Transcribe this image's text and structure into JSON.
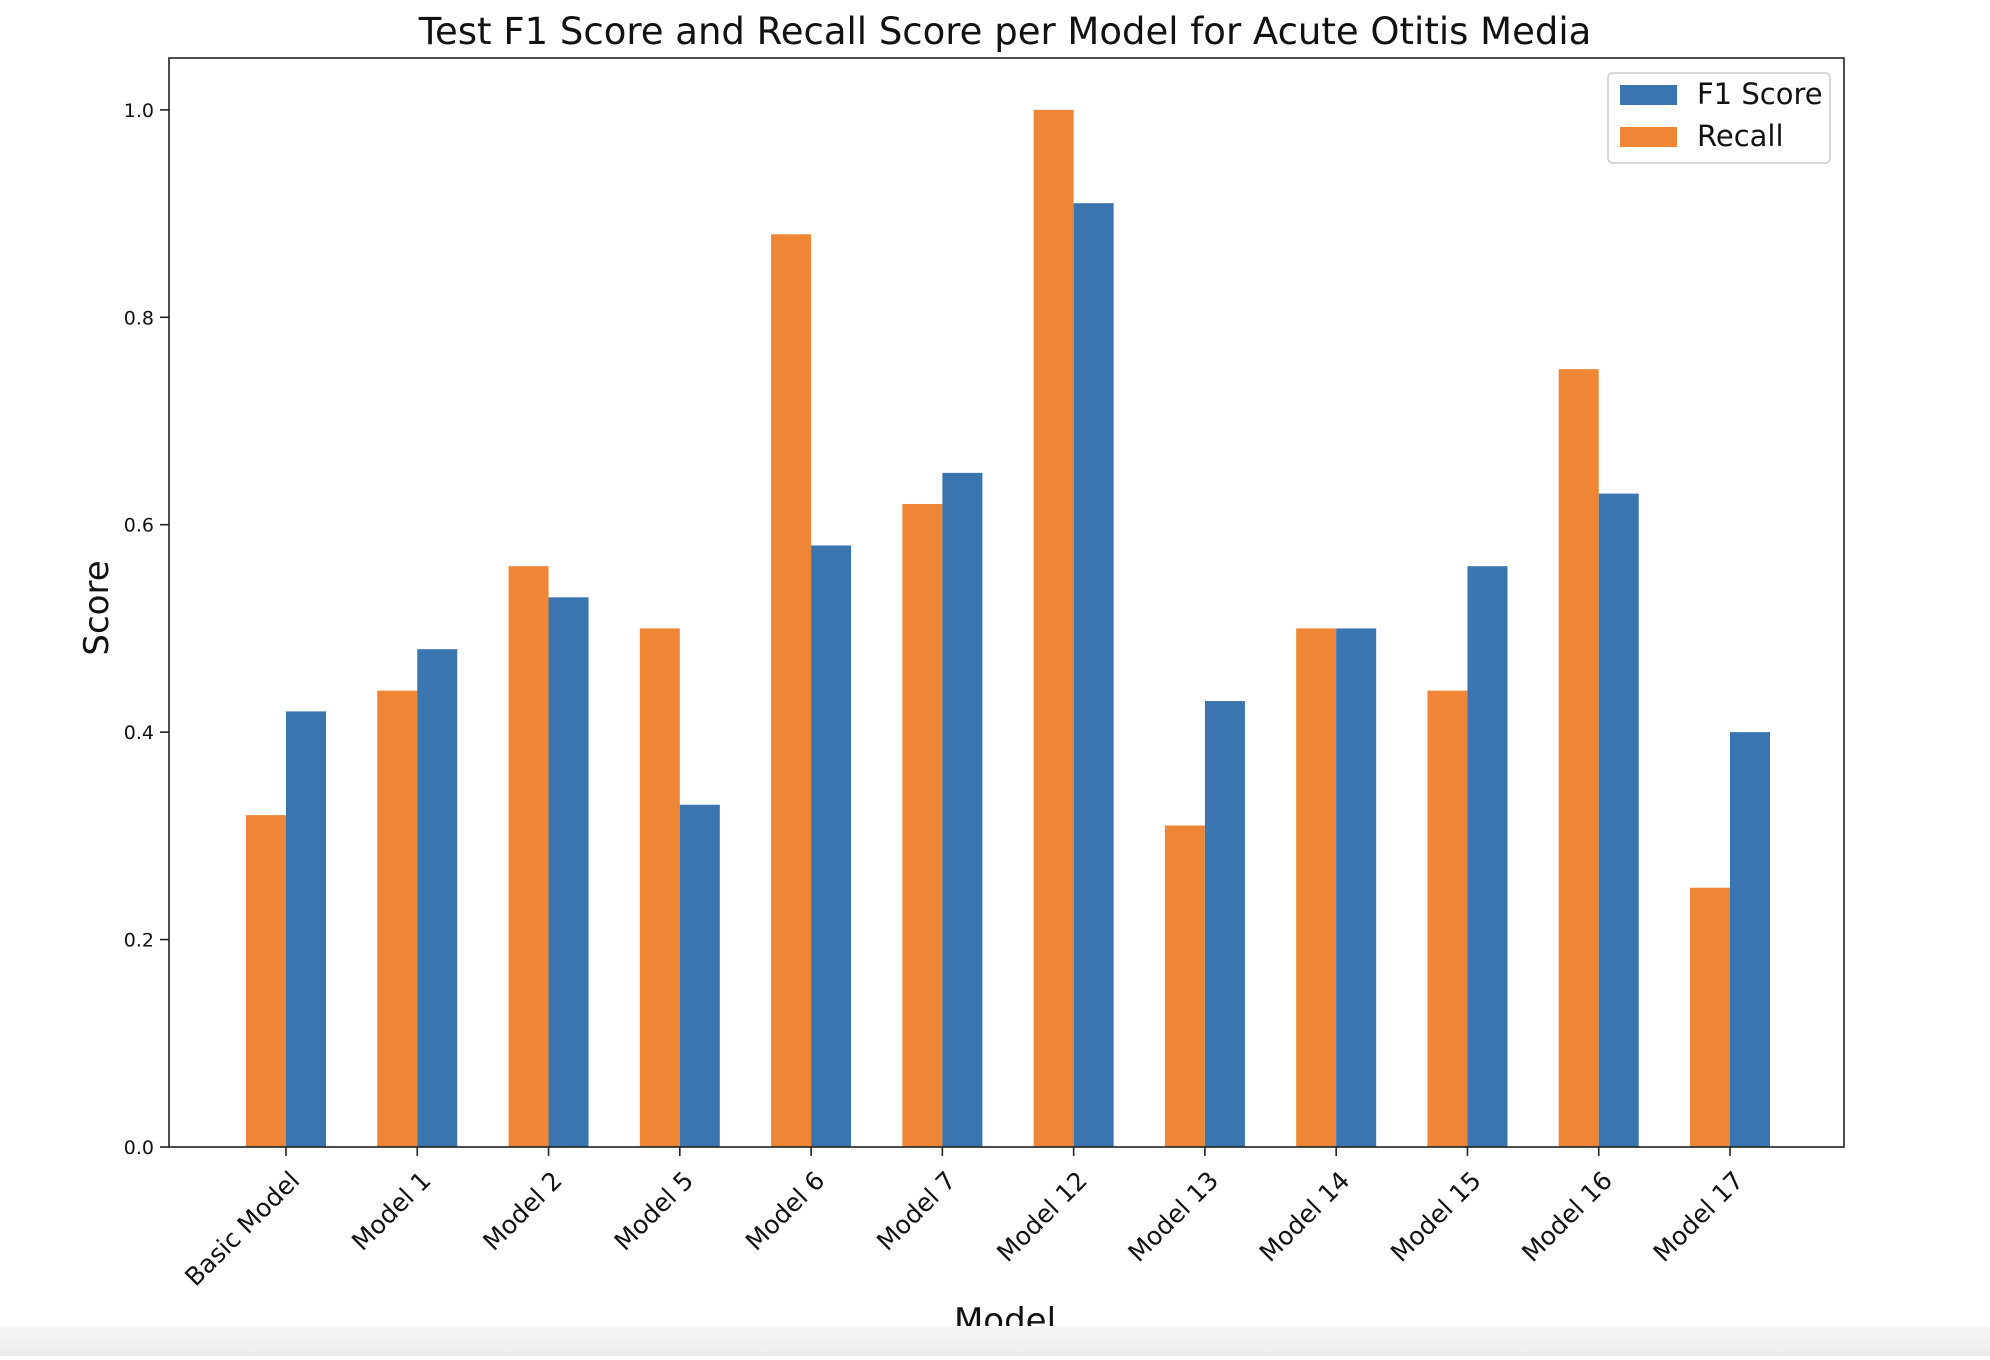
{
  "chart_data": {
    "type": "bar",
    "title": "Test F1 Score and Recall Score per Model for Acute Otitis Media",
    "xlabel": "Model",
    "ylabel": "Score",
    "ylim": [
      0,
      1.05
    ],
    "yticks": [
      "0.0",
      "0.2",
      "0.4",
      "0.6",
      "0.8",
      "1.0"
    ],
    "grid": false,
    "legend_position": "top-right",
    "categories": [
      "Basic Model",
      "Model 1",
      "Model 2",
      "Model 5",
      "Model 6",
      "Model 7",
      "Model 12",
      "Model 13",
      "Model 14",
      "Model 15",
      "Model 16",
      "Model 17"
    ],
    "series": [
      {
        "name": "Recall",
        "color": "#ef8636",
        "values": [
          0.32,
          0.44,
          0.56,
          0.5,
          0.88,
          0.62,
          1.0,
          0.31,
          0.5,
          0.44,
          0.75,
          0.25
        ]
      },
      {
        "name": "F1 Score",
        "color": "#3b75af",
        "values": [
          0.42,
          0.48,
          0.53,
          0.33,
          0.58,
          0.65,
          0.91,
          0.43,
          0.5,
          0.56,
          0.63,
          0.4
        ]
      }
    ],
    "legend_order": [
      "F1 Score",
      "Recall"
    ]
  }
}
